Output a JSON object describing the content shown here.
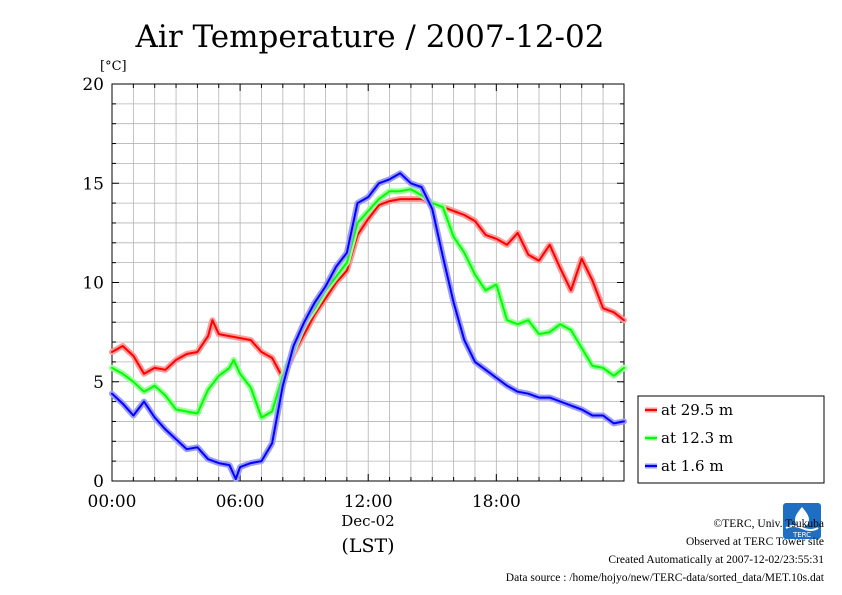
{
  "chart_data": {
    "type": "line",
    "title": "Air Temperature / 2007-12-02",
    "ylabel": "[°C]",
    "xlabel_date": "Dec-02",
    "xlabel_unit": "(LST)",
    "xlim": [
      0,
      23.98
    ],
    "ylim": [
      0,
      20
    ],
    "xticks": [
      {
        "value": 0,
        "label": "00:00"
      },
      {
        "value": 6,
        "label": "06:00"
      },
      {
        "value": 12,
        "label": "12:00"
      },
      {
        "value": 18,
        "label": "18:00"
      }
    ],
    "yticks": [
      0,
      5,
      10,
      15,
      20
    ],
    "grid": true,
    "legend_placement": "right",
    "series": [
      {
        "name": "at 29.5 m",
        "color": "#ff0000",
        "halo": "#ff9a9a",
        "points": [
          [
            0,
            6.5
          ],
          [
            0.5,
            6.8
          ],
          [
            1,
            6.3
          ],
          [
            1.5,
            5.4
          ],
          [
            2,
            5.7
          ],
          [
            2.5,
            5.6
          ],
          [
            3,
            6.1
          ],
          [
            3.5,
            6.4
          ],
          [
            4,
            6.5
          ],
          [
            4.5,
            7.3
          ],
          [
            4.7,
            8.1
          ],
          [
            5,
            7.4
          ],
          [
            5.5,
            7.3
          ],
          [
            6,
            7.2
          ],
          [
            6.5,
            7.1
          ],
          [
            7,
            6.5
          ],
          [
            7.5,
            6.2
          ],
          [
            7.7,
            5.8
          ],
          [
            8,
            5.2
          ],
          [
            8.5,
            6.4
          ],
          [
            9,
            7.4
          ],
          [
            9.5,
            8.4
          ],
          [
            10,
            9.2
          ],
          [
            10.5,
            10
          ],
          [
            11,
            10.6
          ],
          [
            11.5,
            12.4
          ],
          [
            12,
            13.2
          ],
          [
            12.5,
            13.9
          ],
          [
            13,
            14.1
          ],
          [
            13.5,
            14.2
          ],
          [
            14,
            14.2
          ],
          [
            14.5,
            14.2
          ],
          [
            15,
            14.0
          ],
          [
            15.5,
            13.8
          ],
          [
            16,
            13.6
          ],
          [
            16.5,
            13.4
          ],
          [
            17,
            13.1
          ],
          [
            17.5,
            12.4
          ],
          [
            18,
            12.2
          ],
          [
            18.5,
            11.9
          ],
          [
            19,
            12.5
          ],
          [
            19.5,
            11.4
          ],
          [
            20,
            11.1
          ],
          [
            20.5,
            11.9
          ],
          [
            21,
            10.7
          ],
          [
            21.5,
            9.6
          ],
          [
            22,
            11.2
          ],
          [
            22.5,
            10.1
          ],
          [
            23,
            8.7
          ],
          [
            23.5,
            8.5
          ],
          [
            23.98,
            8.1
          ]
        ]
      },
      {
        "name": "at 12.3 m",
        "color": "#00ff00",
        "halo": "#9aff9a",
        "points": [
          [
            0,
            5.7
          ],
          [
            0.5,
            5.4
          ],
          [
            1,
            5.0
          ],
          [
            1.5,
            4.5
          ],
          [
            2,
            4.8
          ],
          [
            2.5,
            4.3
          ],
          [
            3,
            3.6
          ],
          [
            3.5,
            3.5
          ],
          [
            4,
            3.4
          ],
          [
            4.5,
            4.6
          ],
          [
            5,
            5.3
          ],
          [
            5.5,
            5.7
          ],
          [
            5.7,
            6.1
          ],
          [
            6,
            5.4
          ],
          [
            6.5,
            4.7
          ],
          [
            7,
            3.2
          ],
          [
            7.5,
            3.5
          ],
          [
            8,
            5.3
          ],
          [
            8.5,
            6.6
          ],
          [
            9,
            7.9
          ],
          [
            9.5,
            8.7
          ],
          [
            10,
            9.6
          ],
          [
            10.5,
            10.3
          ],
          [
            11,
            11.0
          ],
          [
            11.5,
            13.0
          ],
          [
            12,
            13.6
          ],
          [
            12.5,
            14.2
          ],
          [
            13,
            14.6
          ],
          [
            13.5,
            14.6
          ],
          [
            14,
            14.7
          ],
          [
            14.5,
            14.4
          ],
          [
            15,
            14.0
          ],
          [
            15.5,
            13.8
          ],
          [
            16,
            12.3
          ],
          [
            16.5,
            11.5
          ],
          [
            17,
            10.4
          ],
          [
            17.5,
            9.6
          ],
          [
            18,
            9.9
          ],
          [
            18.5,
            8.1
          ],
          [
            19,
            7.9
          ],
          [
            19.5,
            8.1
          ],
          [
            20,
            7.4
          ],
          [
            20.5,
            7.5
          ],
          [
            21,
            7.9
          ],
          [
            21.5,
            7.6
          ],
          [
            22,
            6.7
          ],
          [
            22.5,
            5.8
          ],
          [
            23,
            5.7
          ],
          [
            23.5,
            5.3
          ],
          [
            23.98,
            5.7
          ]
        ]
      },
      {
        "name": "at 1.6 m",
        "color": "#0000ff",
        "halo": "#9a9aff",
        "points": [
          [
            0,
            4.4
          ],
          [
            0.5,
            3.9
          ],
          [
            1,
            3.3
          ],
          [
            1.5,
            4.0
          ],
          [
            2,
            3.2
          ],
          [
            2.5,
            2.6
          ],
          [
            3,
            2.1
          ],
          [
            3.5,
            1.6
          ],
          [
            4,
            1.7
          ],
          [
            4.5,
            1.1
          ],
          [
            5,
            0.9
          ],
          [
            5.5,
            0.8
          ],
          [
            5.8,
            0.1
          ],
          [
            6,
            0.7
          ],
          [
            6.5,
            0.9
          ],
          [
            7,
            1.0
          ],
          [
            7.5,
            1.9
          ],
          [
            8,
            4.8
          ],
          [
            8.5,
            6.8
          ],
          [
            9,
            8.0
          ],
          [
            9.5,
            9.0
          ],
          [
            10,
            9.8
          ],
          [
            10.5,
            10.8
          ],
          [
            11,
            11.5
          ],
          [
            11.5,
            14.0
          ],
          [
            12,
            14.3
          ],
          [
            12.5,
            15.0
          ],
          [
            13,
            15.2
          ],
          [
            13.5,
            15.5
          ],
          [
            14,
            15.0
          ],
          [
            14.5,
            14.8
          ],
          [
            15,
            13.7
          ],
          [
            15.5,
            11.3
          ],
          [
            16,
            9.0
          ],
          [
            16.5,
            7.1
          ],
          [
            17,
            6.0
          ],
          [
            17.5,
            5.6
          ],
          [
            18,
            5.2
          ],
          [
            18.5,
            4.8
          ],
          [
            19,
            4.5
          ],
          [
            19.5,
            4.4
          ],
          [
            20,
            4.2
          ],
          [
            20.5,
            4.2
          ],
          [
            21,
            4.0
          ],
          [
            21.5,
            3.8
          ],
          [
            22,
            3.6
          ],
          [
            22.5,
            3.3
          ],
          [
            23,
            3.3
          ],
          [
            23.5,
            2.9
          ],
          [
            23.98,
            3.0
          ]
        ]
      }
    ]
  },
  "footer": {
    "copyright": "©TERC, Univ. Tsukuba",
    "observed": "Observed at TERC Tower site",
    "created": "Created Automatically at 2007-12-02/23:55:31",
    "source": "Data source : /home/hojyo/new/TERC-data/sorted_data/MET.10s.dat"
  },
  "logo": {
    "text": "TERC",
    "color": "#1e6fc4"
  }
}
